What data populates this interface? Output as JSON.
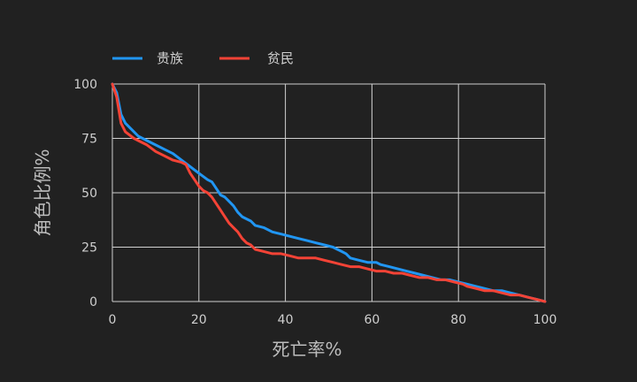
{
  "chart_data": {
    "type": "line",
    "xlabel": "死亡率%",
    "ylabel": "角色比例%",
    "xlim": [
      0,
      100
    ],
    "ylim": [
      0,
      100
    ],
    "xticks": [
      0,
      20,
      40,
      60,
      80,
      100
    ],
    "yticks": [
      0,
      25,
      50,
      75,
      100
    ],
    "grid": true,
    "legend_position": "top-left",
    "series": [
      {
        "name": "贵族",
        "color": "#2196f3",
        "points": [
          [
            0,
            100
          ],
          [
            1,
            96
          ],
          [
            2,
            86
          ],
          [
            3,
            82
          ],
          [
            5,
            78
          ],
          [
            6,
            76
          ],
          [
            8,
            74
          ],
          [
            10,
            72
          ],
          [
            12,
            70
          ],
          [
            14,
            68
          ],
          [
            16,
            65
          ],
          [
            18,
            62
          ],
          [
            20,
            59
          ],
          [
            22,
            56
          ],
          [
            23,
            55
          ],
          [
            24,
            52
          ],
          [
            25,
            49
          ],
          [
            26,
            48
          ],
          [
            27,
            46
          ],
          [
            28,
            44
          ],
          [
            29,
            41
          ],
          [
            30,
            39
          ],
          [
            32,
            37
          ],
          [
            33,
            35
          ],
          [
            35,
            34
          ],
          [
            37,
            32
          ],
          [
            39,
            31
          ],
          [
            41,
            30
          ],
          [
            43,
            29
          ],
          [
            45,
            28
          ],
          [
            47,
            27
          ],
          [
            49,
            26
          ],
          [
            51,
            25
          ],
          [
            52,
            24
          ],
          [
            53,
            23
          ],
          [
            54,
            22
          ],
          [
            55,
            20
          ],
          [
            57,
            19
          ],
          [
            59,
            18
          ],
          [
            61,
            18
          ],
          [
            62,
            17
          ],
          [
            64,
            16
          ],
          [
            66,
            15
          ],
          [
            68,
            14
          ],
          [
            70,
            13
          ],
          [
            72,
            12
          ],
          [
            74,
            11
          ],
          [
            76,
            10
          ],
          [
            78,
            10
          ],
          [
            80,
            9
          ],
          [
            82,
            8
          ],
          [
            84,
            7
          ],
          [
            86,
            6
          ],
          [
            88,
            5
          ],
          [
            90,
            5
          ],
          [
            92,
            4
          ],
          [
            94,
            3
          ],
          [
            96,
            2
          ],
          [
            98,
            1
          ],
          [
            100,
            0
          ]
        ]
      },
      {
        "name": "贫民",
        "color": "#f44336",
        "points": [
          [
            0,
            100
          ],
          [
            1,
            94
          ],
          [
            2,
            82
          ],
          [
            3,
            78
          ],
          [
            5,
            75
          ],
          [
            6,
            74
          ],
          [
            8,
            72
          ],
          [
            10,
            69
          ],
          [
            12,
            67
          ],
          [
            14,
            65
          ],
          [
            16,
            64
          ],
          [
            17,
            63
          ],
          [
            18,
            59
          ],
          [
            19,
            56
          ],
          [
            20,
            53
          ],
          [
            21,
            51
          ],
          [
            22,
            50
          ],
          [
            23,
            48
          ],
          [
            24,
            45
          ],
          [
            25,
            42
          ],
          [
            26,
            39
          ],
          [
            27,
            36
          ],
          [
            28,
            34
          ],
          [
            29,
            32
          ],
          [
            30,
            29
          ],
          [
            31,
            27
          ],
          [
            32,
            26
          ],
          [
            33,
            24
          ],
          [
            35,
            23
          ],
          [
            37,
            22
          ],
          [
            39,
            22
          ],
          [
            41,
            21
          ],
          [
            43,
            20
          ],
          [
            45,
            20
          ],
          [
            47,
            20
          ],
          [
            49,
            19
          ],
          [
            51,
            18
          ],
          [
            53,
            17
          ],
          [
            55,
            16
          ],
          [
            57,
            16
          ],
          [
            59,
            15
          ],
          [
            61,
            14
          ],
          [
            63,
            14
          ],
          [
            65,
            13
          ],
          [
            67,
            13
          ],
          [
            69,
            12
          ],
          [
            71,
            11
          ],
          [
            73,
            11
          ],
          [
            75,
            10
          ],
          [
            77,
            10
          ],
          [
            79,
            9
          ],
          [
            81,
            8
          ],
          [
            82,
            7
          ],
          [
            84,
            6
          ],
          [
            86,
            5
          ],
          [
            88,
            5
          ],
          [
            90,
            4
          ],
          [
            92,
            3
          ],
          [
            94,
            3
          ],
          [
            96,
            2
          ],
          [
            98,
            1
          ],
          [
            100,
            0
          ]
        ]
      }
    ]
  }
}
